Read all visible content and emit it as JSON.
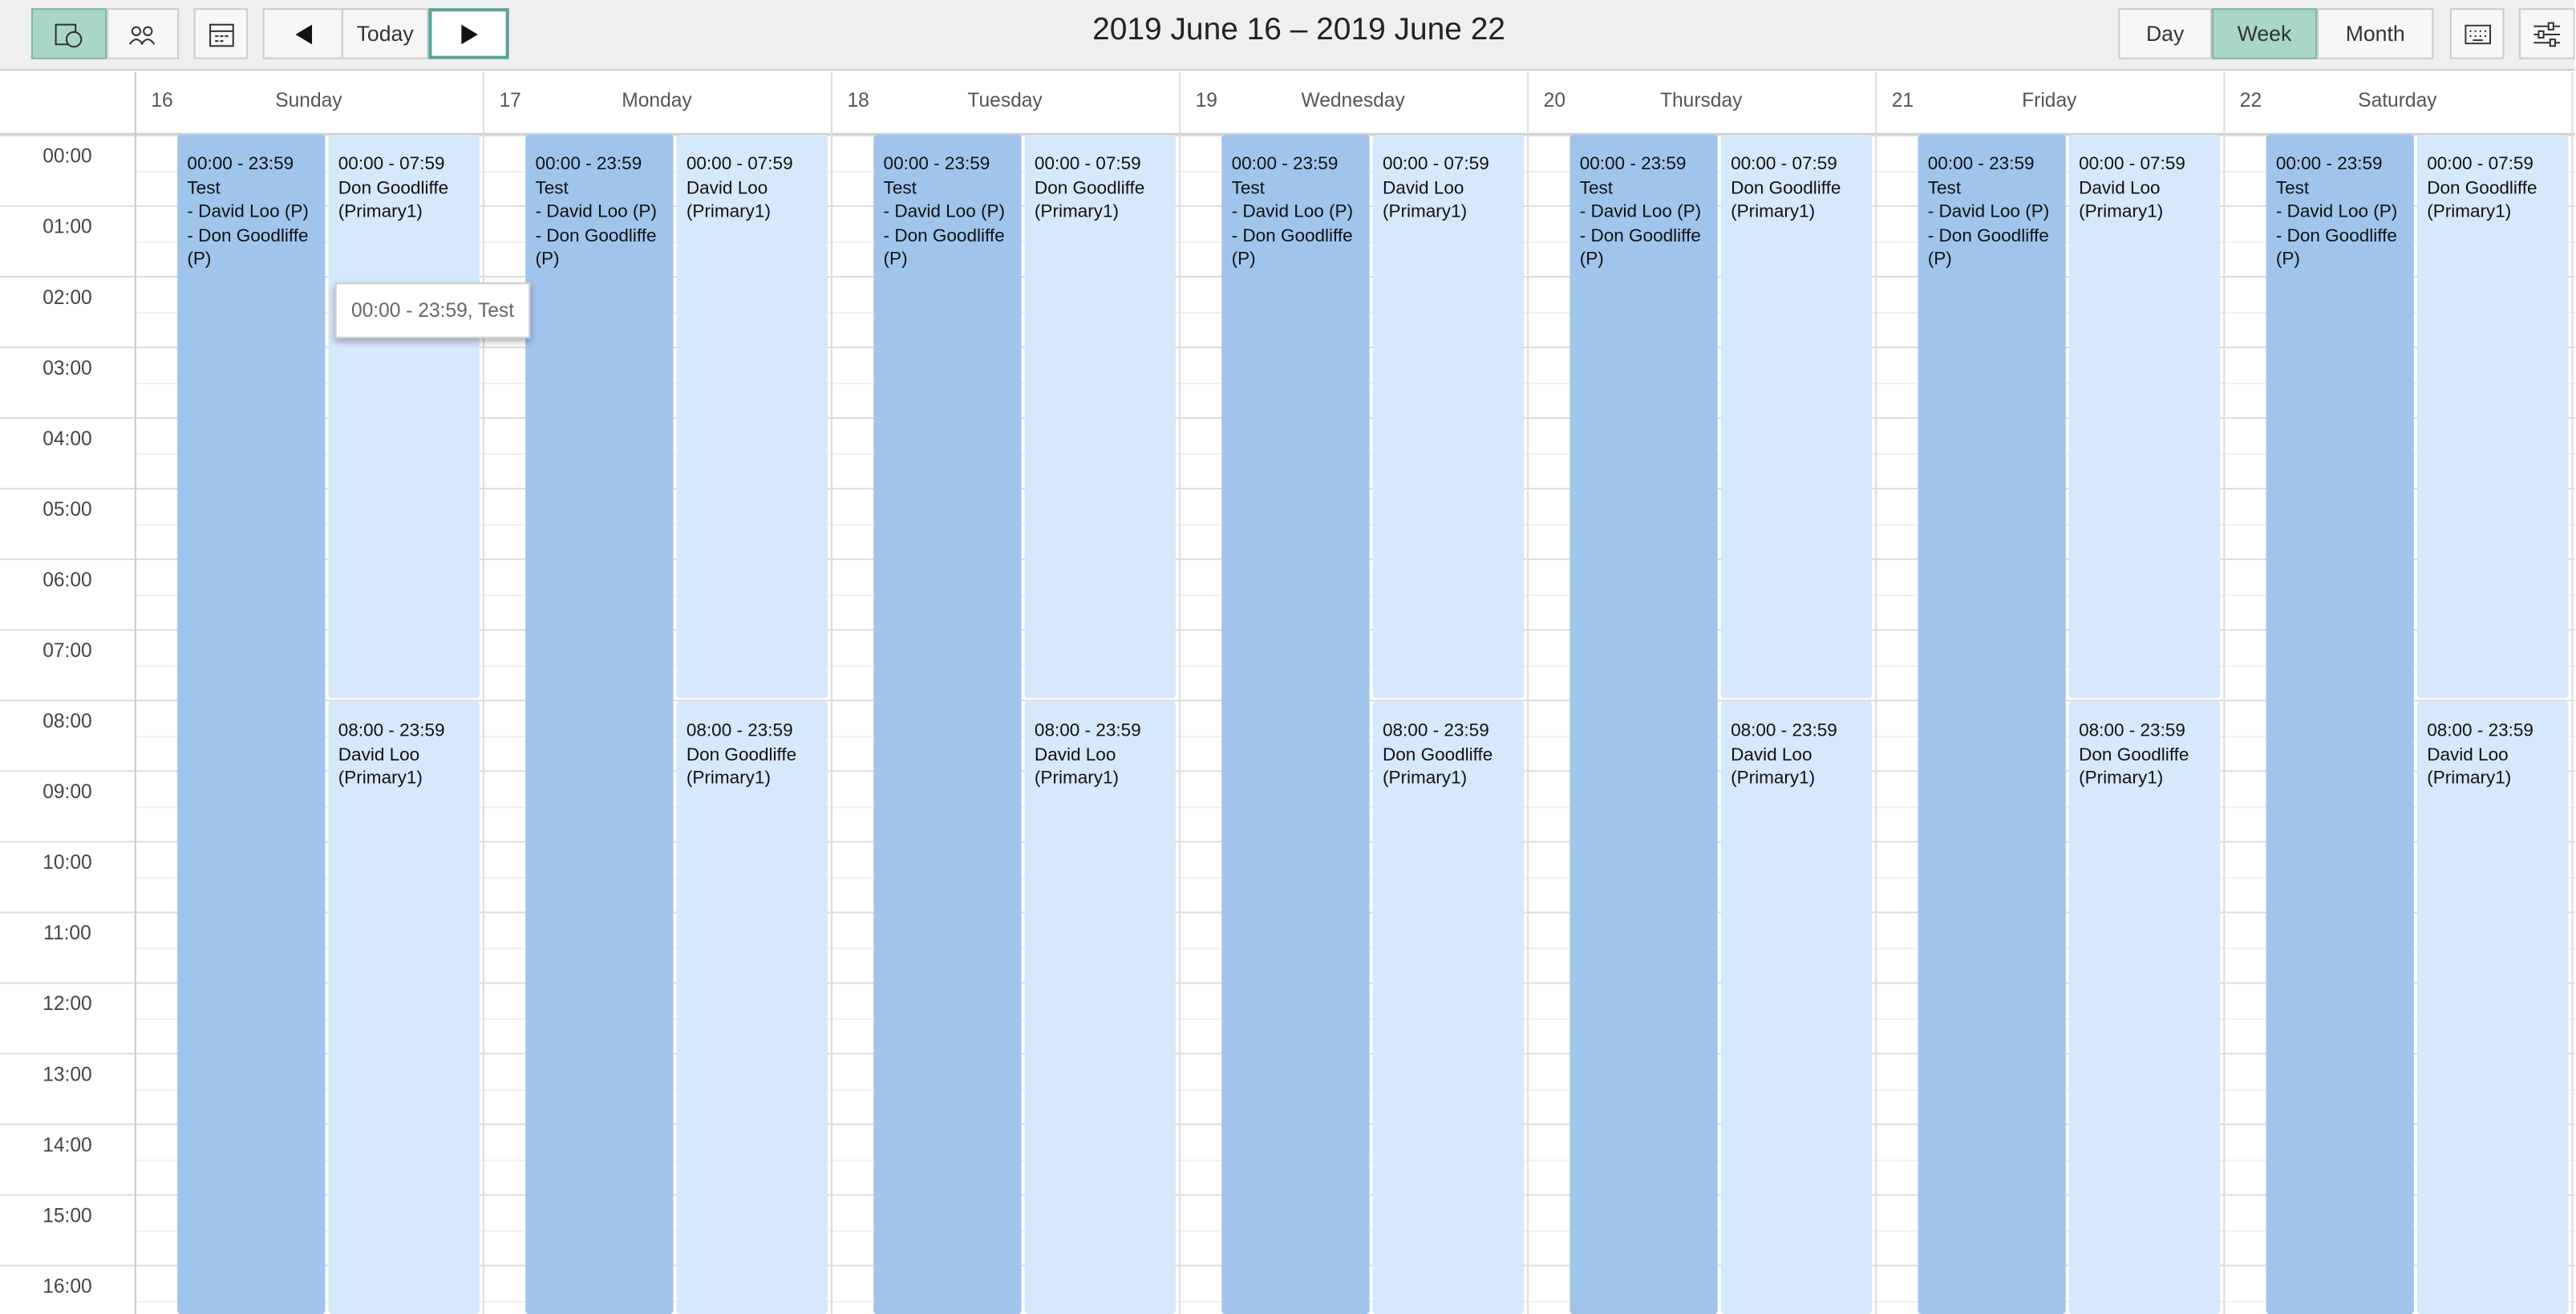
{
  "toolbar": {
    "today": "Today",
    "title": "2019 June 16 – 2019 June 22",
    "views": [
      "Day",
      "Week",
      "Month"
    ]
  },
  "hours": [
    "00:00",
    "01:00",
    "02:00",
    "03:00",
    "04:00",
    "05:00",
    "06:00",
    "07:00",
    "08:00",
    "09:00",
    "10:00",
    "11:00",
    "12:00",
    "13:00",
    "14:00",
    "15:00",
    "16:00"
  ],
  "days": [
    {
      "date": "16",
      "name": "Sunday",
      "events": [
        {
          "time": "00:00 - 23:59",
          "lines": [
            "Test",
            "- David Loo (P)",
            "- Don Goodliffe (P)"
          ]
        },
        {
          "time": "00:00 - 07:59",
          "lines": [
            "Don Goodliffe",
            "(Primary1)"
          ]
        },
        {
          "time": "08:00 - 23:59",
          "lines": [
            "David Loo",
            "(Primary1)"
          ]
        }
      ]
    },
    {
      "date": "17",
      "name": "Monday",
      "events": [
        {
          "time": "00:00 - 23:59",
          "lines": [
            "Test",
            "- David Loo (P)",
            "- Don Goodliffe (P)"
          ]
        },
        {
          "time": "00:00 - 07:59",
          "lines": [
            "David Loo",
            "(Primary1)"
          ]
        },
        {
          "time": "08:00 - 23:59",
          "lines": [
            "Don Goodliffe",
            "(Primary1)"
          ]
        }
      ]
    },
    {
      "date": "18",
      "name": "Tuesday",
      "events": [
        {
          "time": "00:00 - 23:59",
          "lines": [
            "Test",
            "- David Loo (P)",
            "- Don Goodliffe (P)"
          ]
        },
        {
          "time": "00:00 - 07:59",
          "lines": [
            "Don Goodliffe",
            "(Primary1)"
          ]
        },
        {
          "time": "08:00 - 23:59",
          "lines": [
            "David Loo",
            "(Primary1)"
          ]
        }
      ]
    },
    {
      "date": "19",
      "name": "Wednesday",
      "events": [
        {
          "time": "00:00 - 23:59",
          "lines": [
            "Test",
            "- David Loo (P)",
            "- Don Goodliffe (P)"
          ]
        },
        {
          "time": "00:00 - 07:59",
          "lines": [
            "David Loo",
            "(Primary1)"
          ]
        },
        {
          "time": "08:00 - 23:59",
          "lines": [
            "Don Goodliffe",
            "(Primary1)"
          ]
        }
      ]
    },
    {
      "date": "20",
      "name": "Thursday",
      "events": [
        {
          "time": "00:00 - 23:59",
          "lines": [
            "Test",
            "- David Loo (P)",
            "- Don Goodliffe (P)"
          ]
        },
        {
          "time": "00:00 - 07:59",
          "lines": [
            "Don Goodliffe",
            "(Primary1)"
          ]
        },
        {
          "time": "08:00 - 23:59",
          "lines": [
            "David Loo",
            "(Primary1)"
          ]
        }
      ]
    },
    {
      "date": "21",
      "name": "Friday",
      "events": [
        {
          "time": "00:00 - 23:59",
          "lines": [
            "Test",
            "- David Loo (P)",
            "- Don Goodliffe (P)"
          ]
        },
        {
          "time": "00:00 - 07:59",
          "lines": [
            "David Loo",
            "(Primary1)"
          ]
        },
        {
          "time": "08:00 - 23:59",
          "lines": [
            "Don Goodliffe",
            "(Primary1)"
          ]
        }
      ]
    },
    {
      "date": "22",
      "name": "Saturday",
      "events": [
        {
          "time": "00:00 - 23:59",
          "lines": [
            "Test",
            "- David Loo (P)",
            "- Don Goodliffe (P)"
          ]
        },
        {
          "time": "00:00 - 07:59",
          "lines": [
            "Don Goodliffe",
            "(Primary1)"
          ]
        },
        {
          "time": "08:00 - 23:59",
          "lines": [
            "David Loo",
            "(Primary1)"
          ]
        }
      ]
    }
  ],
  "tooltip": "00:00 - 23:59, Test"
}
